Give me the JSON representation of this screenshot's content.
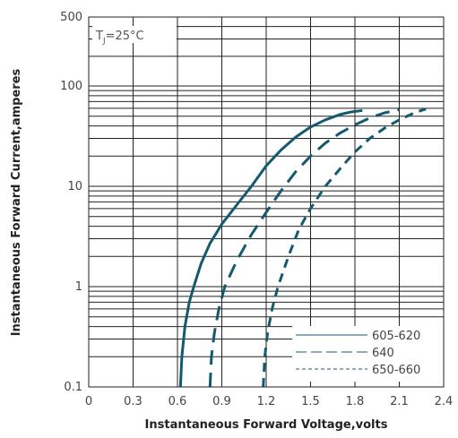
{
  "chart_data": {
    "type": "line",
    "annotation": "Tⱼ=25°C",
    "annotation_parts": {
      "main": "T",
      "sub": "J",
      "rest": "=25°C"
    },
    "xlabel": "Instantaneous Forward Voltage,volts",
    "ylabel": "Instantaneous Forward Current,amperes",
    "x_ticks": [
      "0",
      "0.3",
      "0.6",
      "0.9",
      "1.2",
      "1.5",
      "1.8",
      "2.1",
      "2.4"
    ],
    "y_ticks": [
      "0.1",
      "1",
      "10",
      "100",
      "500"
    ],
    "xlim": [
      0,
      2.4
    ],
    "ylim": [
      0.1,
      500
    ],
    "y_scale": "log",
    "grid": true,
    "legend_position": "bottom-right",
    "series": [
      {
        "name": "605-620",
        "style": "solid",
        "color": "#145a6e",
        "points": [
          [
            0.62,
            0.1
          ],
          [
            0.63,
            0.2
          ],
          [
            0.65,
            0.4
          ],
          [
            0.68,
            0.7
          ],
          [
            0.71,
            1.0
          ],
          [
            0.76,
            1.7
          ],
          [
            0.82,
            2.7
          ],
          [
            0.9,
            4.2
          ],
          [
            1.0,
            6.5
          ],
          [
            1.1,
            10
          ],
          [
            1.2,
            16
          ],
          [
            1.3,
            23
          ],
          [
            1.4,
            31
          ],
          [
            1.5,
            39
          ],
          [
            1.6,
            46
          ],
          [
            1.7,
            52
          ],
          [
            1.77,
            55
          ],
          [
            1.85,
            57
          ]
        ]
      },
      {
        "name": "640",
        "style": "dashed",
        "color": "#145a6e",
        "points": [
          [
            0.82,
            0.1
          ],
          [
            0.83,
            0.2
          ],
          [
            0.85,
            0.35
          ],
          [
            0.88,
            0.6
          ],
          [
            0.92,
            1.0
          ],
          [
            1.0,
            1.8
          ],
          [
            1.1,
            3.3
          ],
          [
            1.2,
            5.5
          ],
          [
            1.3,
            9
          ],
          [
            1.4,
            14
          ],
          [
            1.5,
            20
          ],
          [
            1.6,
            27
          ],
          [
            1.7,
            34
          ],
          [
            1.8,
            41
          ],
          [
            1.9,
            48
          ],
          [
            2.0,
            54
          ],
          [
            2.1,
            58
          ]
        ]
      },
      {
        "name": "650-660",
        "style": "dotted-dash",
        "color": "#145a6e",
        "points": [
          [
            1.18,
            0.1
          ],
          [
            1.19,
            0.2
          ],
          [
            1.21,
            0.35
          ],
          [
            1.24,
            0.6
          ],
          [
            1.28,
            1.0
          ],
          [
            1.35,
            2.0
          ],
          [
            1.42,
            3.7
          ],
          [
            1.5,
            6
          ],
          [
            1.6,
            10
          ],
          [
            1.7,
            15
          ],
          [
            1.8,
            22
          ],
          [
            1.9,
            30
          ],
          [
            2.0,
            38
          ],
          [
            2.1,
            46
          ],
          [
            2.2,
            54
          ],
          [
            2.28,
            59
          ]
        ]
      }
    ]
  }
}
